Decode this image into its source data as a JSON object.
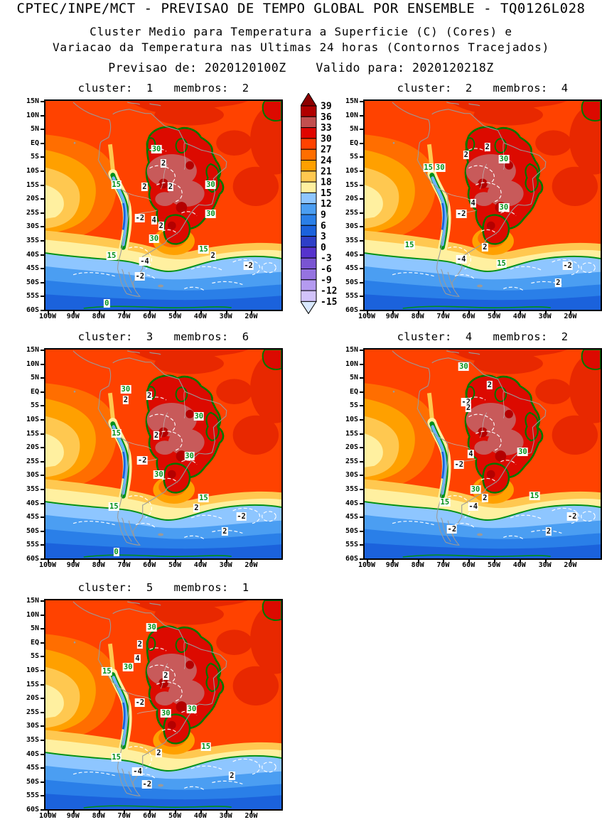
{
  "header": {
    "line1": "CPTEC/INPE/MCT - PREVISAO DE TEMPO GLOBAL POR ENSEMBLE - TQ0126L028",
    "line2": "Cluster Medio para Temperatura a Superficie (C) (Cores) e",
    "line3": "Variacao da Temperatura nas Ultimas 24 horas (Contornos Tracejados)",
    "line4": "Previsao de: 2020120100Z    Valido para: 2020120218Z"
  },
  "chart_data": {
    "type": "filled_contour_map",
    "title": "Cluster Medio para Temperatura a Superficie (C) (Cores) e Variacao da Temperatura nas Ultimas 24 horas (Contornos Tracejados)",
    "model_run": "2020120100Z",
    "valid_time": "2020120218Z",
    "region": {
      "lon_left": "100W",
      "lon_right": "5W",
      "lat_top": "15N",
      "lat_bottom": "60S"
    },
    "fill_variable": "Temperatura a Superficie (C)",
    "contour_variable": "Variacao da Temperatura nas Ultimas 24 horas",
    "axes": {
      "x_ticks": [
        "100W",
        "90W",
        "80W",
        "70W",
        "60W",
        "50W",
        "40W",
        "30W",
        "20W"
      ],
      "y_ticks": [
        "15N",
        "10N",
        "5N",
        "EQ",
        "5S",
        "10S",
        "15S",
        "20S",
        "25S",
        "30S",
        "35S",
        "40S",
        "45S",
        "50S",
        "55S",
        "60S"
      ]
    },
    "colorbar": {
      "levels": [
        "39",
        "36",
        "33",
        "30",
        "27",
        "24",
        "21",
        "18",
        "15",
        "12",
        "9",
        "6",
        "3",
        "0",
        "-3",
        "-6",
        "-9",
        "-12",
        "-15"
      ],
      "colors": [
        "#b10000",
        "#c24f4f",
        "#e00500",
        "#ff4200",
        "#ff6e00",
        "#ffa000",
        "#ffc850",
        "#fff0a0",
        "#8ec6ff",
        "#4b9ef2",
        "#2a7fe8",
        "#1b62dc",
        "#2e3fc8",
        "#5633cd",
        "#7a55d2",
        "#9573e0",
        "#b49af0",
        "#d2c3fa"
      ],
      "arrow_top_color": "#8c0000",
      "arrow_bottom_color": "#d9e8ff"
    },
    "contour_colors": {
      "temp": "#009018",
      "delta": "#ffffff"
    },
    "panels": [
      {
        "cluster": "1",
        "membros": "2",
        "title": "cluster:  1   membros:  2",
        "contour_labels": [
          {
            "v": "30",
            "t": "temp",
            "x": 47,
            "y": 23
          },
          {
            "v": "2",
            "t": "delta",
            "x": 50,
            "y": 30
          },
          {
            "v": "15",
            "t": "temp",
            "x": 30,
            "y": 40
          },
          {
            "v": "2",
            "t": "delta",
            "x": 42,
            "y": 41
          },
          {
            "v": "2",
            "t": "delta",
            "x": 53,
            "y": 41
          },
          {
            "v": "30",
            "t": "temp",
            "x": 70,
            "y": 40
          },
          {
            "v": "30",
            "t": "temp",
            "x": 70,
            "y": 54
          },
          {
            "v": "-2",
            "t": "delta",
            "x": 40,
            "y": 56
          },
          {
            "v": "4",
            "t": "delta",
            "x": 46,
            "y": 57
          },
          {
            "v": "2",
            "t": "delta",
            "x": 49,
            "y": 60
          },
          {
            "v": "30",
            "t": "temp",
            "x": 46,
            "y": 66
          },
          {
            "v": "15",
            "t": "temp",
            "x": 67,
            "y": 71
          },
          {
            "v": "2",
            "t": "delta",
            "x": 71,
            "y": 74
          },
          {
            "v": "15",
            "t": "temp",
            "x": 28,
            "y": 74
          },
          {
            "v": "-4",
            "t": "delta",
            "x": 42,
            "y": 77
          },
          {
            "v": "-2",
            "t": "delta",
            "x": 40,
            "y": 84
          },
          {
            "v": "-2",
            "t": "delta",
            "x": 86,
            "y": 79
          },
          {
            "v": "0",
            "t": "temp",
            "x": 26,
            "y": 97
          }
        ]
      },
      {
        "cluster": "2",
        "membros": "4",
        "title": "cluster:  2   membros:  4",
        "contour_labels": [
          {
            "v": "2",
            "t": "delta",
            "x": 52,
            "y": 22
          },
          {
            "v": "2",
            "t": "delta",
            "x": 43,
            "y": 26
          },
          {
            "v": "30",
            "t": "temp",
            "x": 59,
            "y": 28
          },
          {
            "v": "15",
            "t": "temp",
            "x": 27,
            "y": 32
          },
          {
            "v": "30",
            "t": "temp",
            "x": 32,
            "y": 32
          },
          {
            "v": "4",
            "t": "delta",
            "x": 46,
            "y": 49
          },
          {
            "v": "-2",
            "t": "delta",
            "x": 41,
            "y": 54
          },
          {
            "v": "30",
            "t": "temp",
            "x": 59,
            "y": 51
          },
          {
            "v": "2",
            "t": "delta",
            "x": 51,
            "y": 70
          },
          {
            "v": "-4",
            "t": "delta",
            "x": 41,
            "y": 76
          },
          {
            "v": "15",
            "t": "temp",
            "x": 58,
            "y": 78
          },
          {
            "v": "15",
            "t": "temp",
            "x": 19,
            "y": 69
          },
          {
            "v": "-2",
            "t": "delta",
            "x": 86,
            "y": 79
          },
          {
            "v": "2",
            "t": "delta",
            "x": 82,
            "y": 87
          }
        ]
      },
      {
        "cluster": "3",
        "membros": "6",
        "title": "cluster:  3   membros:  6",
        "contour_labels": [
          {
            "v": "30",
            "t": "temp",
            "x": 34,
            "y": 19
          },
          {
            "v": "2",
            "t": "delta",
            "x": 34,
            "y": 24
          },
          {
            "v": "2",
            "t": "delta",
            "x": 44,
            "y": 22
          },
          {
            "v": "30",
            "t": "temp",
            "x": 65,
            "y": 32
          },
          {
            "v": "15",
            "t": "temp",
            "x": 30,
            "y": 40
          },
          {
            "v": "2",
            "t": "delta",
            "x": 47,
            "y": 41
          },
          {
            "v": "-2",
            "t": "delta",
            "x": 41,
            "y": 53
          },
          {
            "v": "30",
            "t": "temp",
            "x": 61,
            "y": 51
          },
          {
            "v": "30",
            "t": "temp",
            "x": 48,
            "y": 60
          },
          {
            "v": "15",
            "t": "temp",
            "x": 67,
            "y": 71
          },
          {
            "v": "2",
            "t": "delta",
            "x": 64,
            "y": 76
          },
          {
            "v": "15",
            "t": "temp",
            "x": 29,
            "y": 75
          },
          {
            "v": "-2",
            "t": "delta",
            "x": 83,
            "y": 80
          },
          {
            "v": "2",
            "t": "delta",
            "x": 76,
            "y": 87
          },
          {
            "v": "0",
            "t": "temp",
            "x": 30,
            "y": 97
          }
        ]
      },
      {
        "cluster": "4",
        "membros": "2",
        "title": "cluster:  4   membros:  2",
        "contour_labels": [
          {
            "v": "30",
            "t": "temp",
            "x": 42,
            "y": 8
          },
          {
            "v": "2",
            "t": "delta",
            "x": 53,
            "y": 17
          },
          {
            "v": "-2",
            "t": "delta",
            "x": 43,
            "y": 25
          },
          {
            "v": "2",
            "t": "delta",
            "x": 44,
            "y": 28
          },
          {
            "v": "4",
            "t": "delta",
            "x": 45,
            "y": 50
          },
          {
            "v": "-2",
            "t": "delta",
            "x": 40,
            "y": 55
          },
          {
            "v": "30",
            "t": "temp",
            "x": 67,
            "y": 49
          },
          {
            "v": "30",
            "t": "temp",
            "x": 47,
            "y": 67
          },
          {
            "v": "2",
            "t": "delta",
            "x": 51,
            "y": 71
          },
          {
            "v": "-4",
            "t": "delta",
            "x": 46,
            "y": 75
          },
          {
            "v": "15",
            "t": "temp",
            "x": 34,
            "y": 73
          },
          {
            "v": "15",
            "t": "temp",
            "x": 72,
            "y": 70
          },
          {
            "v": "-2",
            "t": "delta",
            "x": 88,
            "y": 80
          },
          {
            "v": "2",
            "t": "delta",
            "x": 78,
            "y": 87
          },
          {
            "v": "-2",
            "t": "delta",
            "x": 37,
            "y": 86
          }
        ]
      },
      {
        "cluster": "5",
        "membros": "1",
        "title": "cluster:  5   membros:  1",
        "contour_labels": [
          {
            "v": "30",
            "t": "temp",
            "x": 45,
            "y": 13
          },
          {
            "v": "2",
            "t": "delta",
            "x": 40,
            "y": 21
          },
          {
            "v": "4",
            "t": "delta",
            "x": 39,
            "y": 28
          },
          {
            "v": "15",
            "t": "temp",
            "x": 26,
            "y": 34
          },
          {
            "v": "30",
            "t": "temp",
            "x": 35,
            "y": 32
          },
          {
            "v": "2",
            "t": "delta",
            "x": 51,
            "y": 36
          },
          {
            "v": "-2",
            "t": "delta",
            "x": 40,
            "y": 49
          },
          {
            "v": "30",
            "t": "temp",
            "x": 51,
            "y": 54
          },
          {
            "v": "30",
            "t": "temp",
            "x": 62,
            "y": 52
          },
          {
            "v": "2",
            "t": "delta",
            "x": 48,
            "y": 73
          },
          {
            "v": "15",
            "t": "temp",
            "x": 68,
            "y": 70
          },
          {
            "v": "15",
            "t": "temp",
            "x": 30,
            "y": 75
          },
          {
            "v": "-4",
            "t": "delta",
            "x": 39,
            "y": 82
          },
          {
            "v": "-2",
            "t": "delta",
            "x": 43,
            "y": 88
          },
          {
            "v": "2",
            "t": "delta",
            "x": 79,
            "y": 84
          }
        ]
      }
    ]
  }
}
